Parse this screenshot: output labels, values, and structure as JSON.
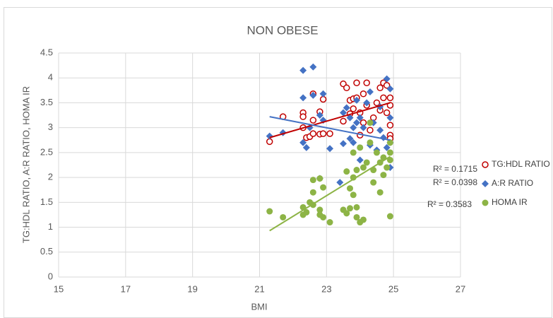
{
  "chart_data": {
    "type": "scatter",
    "title": "NON OBESE",
    "x_label": "BMI",
    "y_label": "TG:HDL RATIO, A:R RATIO, HOMA IR",
    "xlim": [
      15,
      27
    ],
    "xticks": [
      15,
      17,
      19,
      21,
      23,
      25,
      27
    ],
    "ylim": [
      0,
      4.5
    ],
    "yticks": [
      0,
      0.5,
      1,
      1.5,
      2,
      2.5,
      3,
      3.5,
      4,
      4.5
    ],
    "grid": true,
    "legend": "right",
    "series": [
      {
        "name": "TG:HDL RATIO",
        "color": "#c00000",
        "marker": "open-circle",
        "r_squared_label": "R² = 0.1715",
        "x": [
          21.3,
          21.7,
          22.3,
          22.3,
          22.3,
          22.4,
          22.5,
          22.6,
          22.6,
          22.6,
          22.8,
          22.8,
          22.9,
          22.9,
          23.1,
          23.5,
          23.5,
          23.6,
          23.7,
          23.7,
          23.8,
          23.8,
          23.9,
          23.9,
          24.0,
          24.0,
          24.1,
          24.1,
          24.2,
          24.2,
          24.3,
          24.4,
          24.5,
          24.6,
          24.6,
          24.7,
          24.7,
          24.8,
          24.8,
          24.9,
          24.9,
          24.9,
          24.9,
          24.9
        ],
        "values": [
          2.72,
          3.22,
          3.3,
          3.22,
          3.0,
          2.8,
          2.82,
          3.68,
          3.15,
          2.88,
          3.32,
          2.87,
          3.57,
          2.88,
          2.88,
          3.13,
          3.88,
          3.8,
          3.55,
          3.28,
          3.58,
          3.38,
          3.9,
          3.6,
          3.3,
          2.85,
          3.68,
          3.1,
          3.9,
          3.45,
          2.95,
          3.2,
          3.5,
          3.8,
          3.35,
          3.9,
          3.6,
          3.85,
          3.3,
          3.6,
          3.45,
          3.05,
          2.85,
          2.78
        ],
        "trendline": {
          "x": [
            21.3,
            24.9
          ],
          "values": [
            2.8,
            3.5
          ]
        }
      },
      {
        "name": "A:R RATIO",
        "color": "#4472c4",
        "marker": "diamond",
        "r_squared_label": "R² = 0.0398",
        "x": [
          21.3,
          21.7,
          22.3,
          22.3,
          22.3,
          22.4,
          22.6,
          22.6,
          22.5,
          22.8,
          22.9,
          22.9,
          22.8,
          23.1,
          23.4,
          23.5,
          23.5,
          23.6,
          23.7,
          23.7,
          23.8,
          23.8,
          23.9,
          23.9,
          24.0,
          24.0,
          24.1,
          24.2,
          24.3,
          24.3,
          24.4,
          24.5,
          24.6,
          24.6,
          24.7,
          24.8,
          24.8,
          24.9,
          24.9,
          24.9,
          24.9
        ],
        "values": [
          2.83,
          2.9,
          4.15,
          3.6,
          2.7,
          2.6,
          4.22,
          3.65,
          3.0,
          3.25,
          3.68,
          3.15,
          1.98,
          2.58,
          1.9,
          3.3,
          2.68,
          3.4,
          3.2,
          2.78,
          3.0,
          2.7,
          3.55,
          3.1,
          3.2,
          2.35,
          3.0,
          3.5,
          3.72,
          2.65,
          3.1,
          2.55,
          3.42,
          2.95,
          2.8,
          3.98,
          2.6,
          3.78,
          3.2,
          2.7,
          2.2
        ],
        "trendline": {
          "x": [
            21.3,
            24.9
          ],
          "values": [
            3.22,
            2.75
          ]
        }
      },
      {
        "name": "HOMA IR",
        "color": "#8db446",
        "marker": "circle",
        "r_squared_label": "R² = 0.3583",
        "x": [
          21.3,
          21.7,
          22.3,
          22.3,
          22.4,
          22.5,
          22.6,
          22.6,
          22.6,
          22.8,
          22.8,
          22.8,
          22.9,
          22.9,
          23.1,
          23.5,
          23.6,
          23.6,
          23.7,
          23.7,
          23.8,
          23.8,
          23.8,
          23.9,
          23.9,
          23.9,
          24.0,
          24.0,
          24.1,
          24.1,
          24.2,
          24.3,
          24.3,
          24.4,
          24.4,
          24.5,
          24.6,
          24.6,
          24.7,
          24.7,
          24.8,
          24.9,
          24.9,
          24.9,
          24.9
        ],
        "values": [
          1.32,
          1.2,
          1.4,
          1.25,
          1.3,
          1.5,
          1.95,
          1.7,
          1.45,
          1.98,
          1.35,
          1.25,
          1.8,
          1.2,
          1.1,
          1.35,
          1.28,
          2.12,
          1.38,
          1.78,
          1.65,
          2.0,
          2.5,
          1.4,
          1.2,
          2.15,
          1.1,
          2.6,
          1.15,
          2.2,
          2.3,
          3.1,
          2.7,
          1.9,
          2.15,
          2.5,
          1.7,
          2.3,
          2.05,
          2.4,
          2.2,
          2.5,
          2.7,
          1.22,
          2.35
        ],
        "trendline": {
          "x": [
            21.3,
            24.9
          ],
          "values": [
            0.93,
            2.42
          ]
        }
      }
    ]
  }
}
